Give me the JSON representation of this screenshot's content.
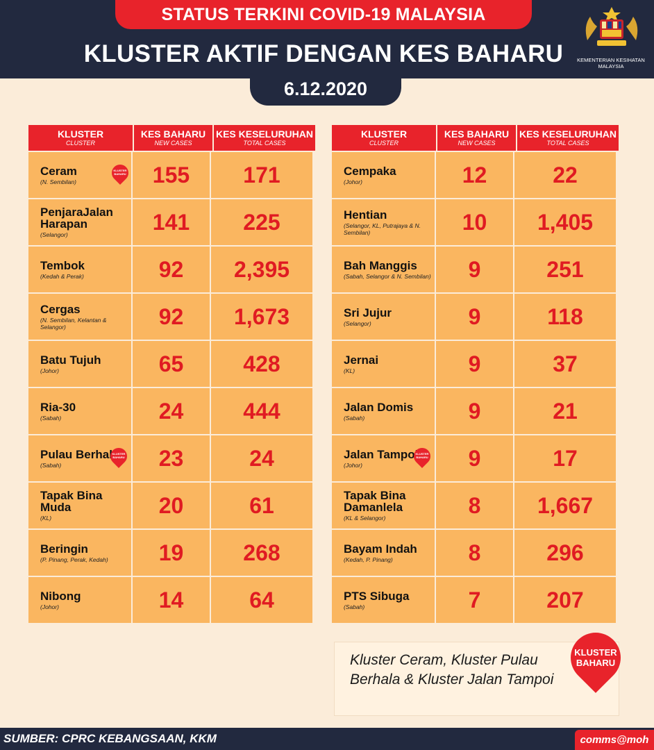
{
  "header": {
    "status_title": "STATUS TERKINI COVID-19 MALAYSIA",
    "main_title": "KLUSTER AKTIF DENGAN KES BAHARU",
    "date": "6.12.2020",
    "ministry": [
      "KEMENTERIAN KESIHATAN",
      "MALAYSIA"
    ]
  },
  "columns": {
    "cluster": {
      "en": "KLUSTER",
      "sub": "CLUSTER"
    },
    "new_cases": {
      "en": "KES BAHARU",
      "sub": "NEW CASES"
    },
    "total_cases": {
      "en": "KES KESELURUHAN",
      "sub": "TOTAL CASES"
    }
  },
  "badge_text": [
    "KLUSTER",
    "BAHARU"
  ],
  "left_table": [
    {
      "name": "Ceram",
      "location": "(N. Sembilan)",
      "new": "155",
      "total": "171",
      "is_new": true
    },
    {
      "name": "PenjaraJalan Harapan",
      "location": "(Selangor)",
      "new": "141",
      "total": "225",
      "is_new": false
    },
    {
      "name": "Tembok",
      "location": "(Kedah & Perak)",
      "new": "92",
      "total": "2,395",
      "is_new": false
    },
    {
      "name": "Cergas",
      "location": "(N. Sembilan, Kelantan & Selangor)",
      "new": "92",
      "total": "1,673",
      "is_new": false
    },
    {
      "name": "Batu Tujuh",
      "location": "(Johor)",
      "new": "65",
      "total": "428",
      "is_new": false
    },
    {
      "name": "Ria-30",
      "location": "(Sabah)",
      "new": "24",
      "total": "444",
      "is_new": false
    },
    {
      "name": "Pulau Berhala",
      "location": "(Sabah)",
      "new": "23",
      "total": "24",
      "is_new": true
    },
    {
      "name": "Tapak Bina Muda",
      "location": "(KL)",
      "new": "20",
      "total": "61",
      "is_new": false
    },
    {
      "name": "Beringin",
      "location": "(P. Pinang, Perak, Kedah)",
      "new": "19",
      "total": "268",
      "is_new": false
    },
    {
      "name": "Nibong",
      "location": "(Johor)",
      "new": "14",
      "total": "64",
      "is_new": false
    }
  ],
  "right_table": [
    {
      "name": "Cempaka",
      "location": "(Johor)",
      "new": "12",
      "total": "22",
      "is_new": false
    },
    {
      "name": "Hentian",
      "location": "(Selangor, KL, Putrajaya & N. Sembilan)",
      "new": "10",
      "total": "1,405",
      "is_new": false
    },
    {
      "name": "Bah Manggis",
      "location": "(Sabah, Selangor & N. Sembilan)",
      "new": "9",
      "total": "251",
      "is_new": false
    },
    {
      "name": "Sri Jujur",
      "location": "(Selangor)",
      "new": "9",
      "total": "118",
      "is_new": false
    },
    {
      "name": "Jernai",
      "location": "(KL)",
      "new": "9",
      "total": "37",
      "is_new": false
    },
    {
      "name": "Jalan Domis",
      "location": "(Sabah)",
      "new": "9",
      "total": "21",
      "is_new": false
    },
    {
      "name": "Jalan Tampoi",
      "location": "(Johor)",
      "new": "9",
      "total": "17",
      "is_new": true
    },
    {
      "name": "Tapak Bina Damanlela",
      "location": "(KL & Selangor)",
      "new": "8",
      "total": "1,667",
      "is_new": false
    },
    {
      "name": "Bayam Indah",
      "location": "(Kedah, P. Pinang)",
      "new": "8",
      "total": "296",
      "is_new": false
    },
    {
      "name": "PTS Sibuga",
      "location": "(Sabah)",
      "new": "7",
      "total": "207",
      "is_new": false
    }
  ],
  "legend": {
    "text": "Kluster Ceram, Kluster Pulau Berhala & Kluster Jalan Tampoi",
    "badge": [
      "KLUSTER",
      "BAHARU"
    ]
  },
  "footer": {
    "source": "SUMBER: CPRC KEBANGSAAN, KKM",
    "handle": "comms@moh"
  },
  "colors": {
    "navy": "#22293f",
    "red": "#e8232b",
    "cell": "#fab660",
    "background": "#fbecd9",
    "number": "#e01b22"
  }
}
